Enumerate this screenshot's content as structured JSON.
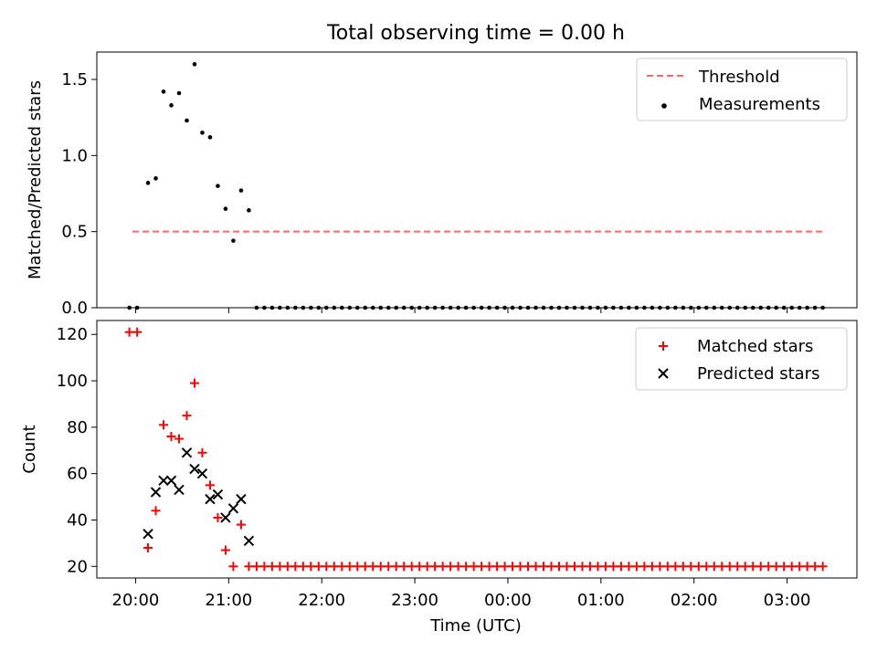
{
  "figure": {
    "title": "Total observing time = 0.00 h"
  },
  "chart_data": [
    {
      "type": "scatter",
      "ylabel": "Matched/Predicted stars",
      "xlabel": "",
      "xlim": [
        "19:35",
        "03:45"
      ],
      "ylim": [
        0,
        1.68
      ],
      "yticks": [
        0.0,
        0.5,
        1.0,
        1.5
      ],
      "ytick_labels": [
        "0.0",
        "0.5",
        "1.0",
        "1.5"
      ],
      "legend_position": "top-right",
      "colors": {
        "threshold": "#ff6666",
        "measurements": "#000000"
      },
      "threshold": {
        "name": "Threshold",
        "y": 0.5,
        "x_range": [
          "19:58",
          "03:25"
        ]
      },
      "series": [
        {
          "name": "Measurements",
          "x": [
            "19:56",
            "20:01",
            "20:08",
            "20:13",
            "20:18",
            "20:23",
            "20:28",
            "20:33",
            "20:38",
            "20:43",
            "20:48",
            "20:53",
            "20:58",
            "21:03",
            "21:08",
            "21:13",
            "21:18",
            "21:23",
            "21:28",
            "21:33",
            "21:38",
            "21:43",
            "21:48",
            "21:53",
            "21:58",
            "22:03",
            "22:08",
            "22:13",
            "22:18",
            "22:23",
            "22:28",
            "22:33",
            "22:38",
            "22:43",
            "22:48",
            "22:53",
            "22:58",
            "23:03",
            "23:08",
            "23:13",
            "23:18",
            "23:23",
            "23:28",
            "23:33",
            "23:38",
            "23:43",
            "23:48",
            "23:53",
            "23:58",
            "00:03",
            "00:08",
            "00:13",
            "00:18",
            "00:23",
            "00:28",
            "00:33",
            "00:38",
            "00:43",
            "00:48",
            "00:53",
            "00:58",
            "01:03",
            "01:08",
            "01:13",
            "01:18",
            "01:23",
            "01:28",
            "01:33",
            "01:38",
            "01:43",
            "01:48",
            "01:53",
            "01:58",
            "02:03",
            "02:08",
            "02:13",
            "02:18",
            "02:23",
            "02:28",
            "02:33",
            "02:38",
            "02:43",
            "02:48",
            "02:53",
            "02:58",
            "03:03",
            "03:08",
            "03:13",
            "03:18",
            "03:23"
          ],
          "y": [
            0,
            0,
            0.82,
            0.85,
            1.42,
            1.33,
            1.41,
            1.23,
            1.6,
            1.15,
            1.12,
            0.8,
            0.65,
            0.44,
            0.77,
            0.64,
            0,
            0,
            0,
            0,
            0,
            0,
            0,
            0,
            0,
            0,
            0,
            0,
            0,
            0,
            0,
            0,
            0,
            0,
            0,
            0,
            0,
            0,
            0,
            0,
            0,
            0,
            0,
            0,
            0,
            0,
            0,
            0,
            0,
            0,
            0,
            0,
            0,
            0,
            0,
            0,
            0,
            0,
            0,
            0,
            0,
            0,
            0,
            0,
            0,
            0,
            0,
            0,
            0,
            0,
            0,
            0,
            0,
            0,
            0,
            0,
            0,
            0,
            0,
            0,
            0,
            0,
            0,
            0,
            0,
            0,
            0,
            0,
            0,
            0
          ]
        }
      ]
    },
    {
      "type": "scatter",
      "ylabel": "Count",
      "xlabel": "Time (UTC)",
      "xlim": [
        "19:35",
        "03:45"
      ],
      "ylim": [
        15,
        126
      ],
      "yticks": [
        20,
        40,
        60,
        80,
        100,
        120
      ],
      "ytick_labels": [
        "20",
        "40",
        "60",
        "80",
        "100",
        "120"
      ],
      "xticks": [
        "20:00",
        "21:00",
        "22:00",
        "23:00",
        "00:00",
        "01:00",
        "02:00",
        "03:00"
      ],
      "legend_position": "top-right",
      "colors": {
        "matched": "#ff0000",
        "predicted": "#000000"
      },
      "series": [
        {
          "name": "Matched stars",
          "marker": "+",
          "x": [
            "19:56",
            "20:01",
            "20:08",
            "20:13",
            "20:18",
            "20:23",
            "20:28",
            "20:33",
            "20:38",
            "20:43",
            "20:48",
            "20:53",
            "20:58",
            "21:03",
            "21:08",
            "21:13",
            "21:18",
            "21:23",
            "21:28",
            "21:33",
            "21:38",
            "21:43",
            "21:48",
            "21:53",
            "21:58",
            "22:03",
            "22:08",
            "22:13",
            "22:18",
            "22:23",
            "22:28",
            "22:33",
            "22:38",
            "22:43",
            "22:48",
            "22:53",
            "22:58",
            "23:03",
            "23:08",
            "23:13",
            "23:18",
            "23:23",
            "23:28",
            "23:33",
            "23:38",
            "23:43",
            "23:48",
            "23:53",
            "23:58",
            "00:03",
            "00:08",
            "00:13",
            "00:18",
            "00:23",
            "00:28",
            "00:33",
            "00:38",
            "00:43",
            "00:48",
            "00:53",
            "00:58",
            "01:03",
            "01:08",
            "01:13",
            "01:18",
            "01:23",
            "01:28",
            "01:33",
            "01:38",
            "01:43",
            "01:48",
            "01:53",
            "01:58",
            "02:03",
            "02:08",
            "02:13",
            "02:18",
            "02:23",
            "02:28",
            "02:33",
            "02:38",
            "02:43",
            "02:48",
            "02:53",
            "02:58",
            "03:03",
            "03:08",
            "03:13",
            "03:18",
            "03:23"
          ],
          "y": [
            121,
            121,
            28,
            44,
            81,
            76,
            75,
            85,
            99,
            69,
            55,
            41,
            27,
            20,
            38,
            20,
            20,
            20,
            20,
            20,
            20,
            20,
            20,
            20,
            20,
            20,
            20,
            20,
            20,
            20,
            20,
            20,
            20,
            20,
            20,
            20,
            20,
            20,
            20,
            20,
            20,
            20,
            20,
            20,
            20,
            20,
            20,
            20,
            20,
            20,
            20,
            20,
            20,
            20,
            20,
            20,
            20,
            20,
            20,
            20,
            20,
            20,
            20,
            20,
            20,
            20,
            20,
            20,
            20,
            20,
            20,
            20,
            20,
            20,
            20,
            20,
            20,
            20,
            20,
            20,
            20,
            20,
            20,
            20,
            20,
            20,
            20,
            20,
            20,
            20
          ]
        },
        {
          "name": "Predicted stars",
          "marker": "x",
          "x": [
            "20:08",
            "20:13",
            "20:18",
            "20:23",
            "20:28",
            "20:33",
            "20:38",
            "20:43",
            "20:48",
            "20:53",
            "20:58",
            "21:03",
            "21:08",
            "21:13"
          ],
          "y": [
            34,
            52,
            57,
            57,
            53,
            69,
            62,
            60,
            49,
            51,
            41,
            45,
            49,
            31
          ]
        }
      ]
    }
  ]
}
